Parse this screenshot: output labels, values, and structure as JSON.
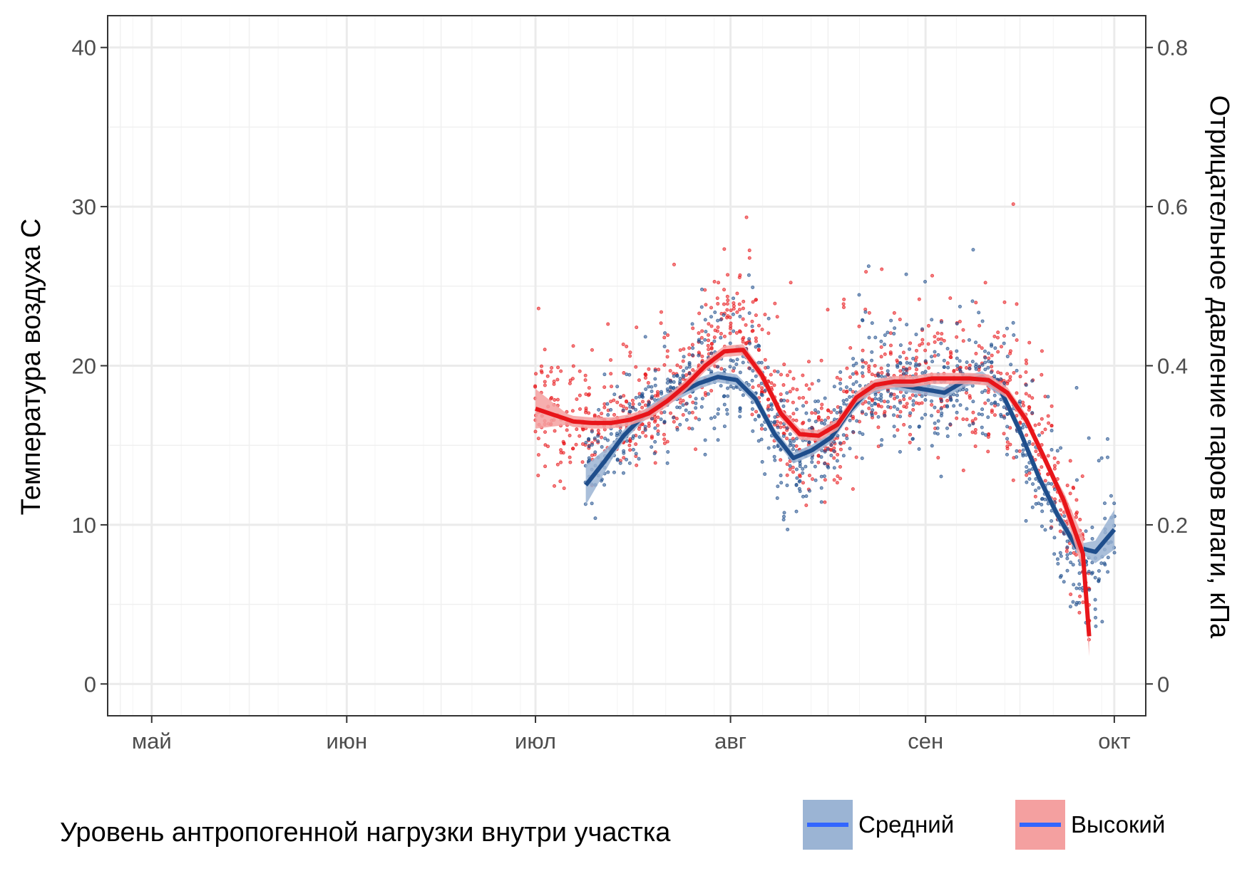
{
  "chart_data": {
    "type": "scatter",
    "x_axis": {
      "tick_labels": [
        "май",
        "июн",
        "июл",
        "авг",
        "сен",
        "окт"
      ],
      "tick_days": [
        0,
        31,
        61,
        92,
        123,
        153
      ],
      "range_days": [
        -7,
        158
      ]
    },
    "y_axis_left": {
      "label": "Температура воздуха   С",
      "ticks": [
        0,
        10,
        20,
        30,
        40
      ],
      "range": [
        -2,
        42
      ]
    },
    "y_axis_right": {
      "label": "Отрицательное давление паров влаги, кПа",
      "ticks": [
        0,
        0.2,
        0.4,
        0.6,
        0.8
      ],
      "tick_labels": [
        "0",
        "0.2",
        "0.4",
        "0.6",
        "0.8"
      ]
    },
    "legend": {
      "title": "Уровень антропогенной нагрузки внутри участка",
      "position": "bottom"
    },
    "series": [
      {
        "name": "Средний",
        "color": "#1F4E8C",
        "ribbon_color": "#9BB4D4",
        "key_line_color": "#3366FF",
        "day_range": [
          69,
          153
        ],
        "smooth_days": [
          69,
          72,
          75,
          78,
          81,
          84,
          87,
          90,
          93,
          96,
          99,
          102,
          105,
          108,
          111,
          114,
          117,
          120,
          123,
          126,
          129,
          132,
          135,
          138,
          141,
          144,
          147,
          150,
          153
        ],
        "smooth_temp": [
          12.5,
          14.0,
          15.6,
          16.8,
          17.7,
          18.3,
          18.9,
          19.3,
          19.1,
          17.9,
          15.7,
          14.2,
          14.7,
          15.5,
          17.2,
          18.5,
          18.9,
          18.7,
          18.5,
          18.3,
          19.0,
          19.3,
          18.4,
          15.9,
          13.0,
          10.6,
          8.6,
          8.3,
          9.7
        ],
        "mean_temp": [
          13.5,
          14.5,
          15.6,
          16.8,
          17.7,
          18.3,
          18.9,
          19.6,
          20.0,
          18.5,
          15.7,
          14.2,
          14.7,
          15.5,
          17.2,
          18.5,
          19.0,
          18.7,
          18.5,
          18.3,
          19.0,
          19.3,
          18.4,
          15.9,
          12.5,
          9.6,
          7.2,
          7.0,
          9.7
        ]
      },
      {
        "name": "Высокий",
        "color": "#E8151A",
        "ribbon_color": "#F4A0A0",
        "key_line_color": "#3366FF",
        "day_range": [
          61,
          149
        ],
        "smooth_days": [
          61,
          64,
          67,
          70,
          73,
          76,
          79,
          82,
          85,
          88,
          91,
          94,
          97,
          100,
          103,
          106,
          109,
          112,
          115,
          118,
          121,
          124,
          127,
          130,
          133,
          136,
          139,
          142,
          145,
          148,
          149
        ],
        "smooth_temp": [
          17.3,
          16.9,
          16.5,
          16.4,
          16.4,
          16.6,
          17.0,
          17.8,
          18.8,
          20.0,
          20.9,
          21.0,
          19.4,
          17.0,
          15.7,
          15.6,
          16.3,
          18.0,
          18.8,
          19.0,
          19.0,
          19.2,
          19.2,
          19.2,
          19.1,
          18.3,
          16.6,
          14.1,
          11.5,
          8.2,
          3.0
        ],
        "mean_temp": [
          17.3,
          16.9,
          16.5,
          16.4,
          16.4,
          16.6,
          17.0,
          17.8,
          18.8,
          20.5,
          22.5,
          22.0,
          19.4,
          17.0,
          15.7,
          15.6,
          16.3,
          18.0,
          18.8,
          19.0,
          19.0,
          19.2,
          19.2,
          19.2,
          19.1,
          18.3,
          16.6,
          14.1,
          11.5,
          8.2,
          5.0
        ]
      }
    ],
    "grid": true
  }
}
